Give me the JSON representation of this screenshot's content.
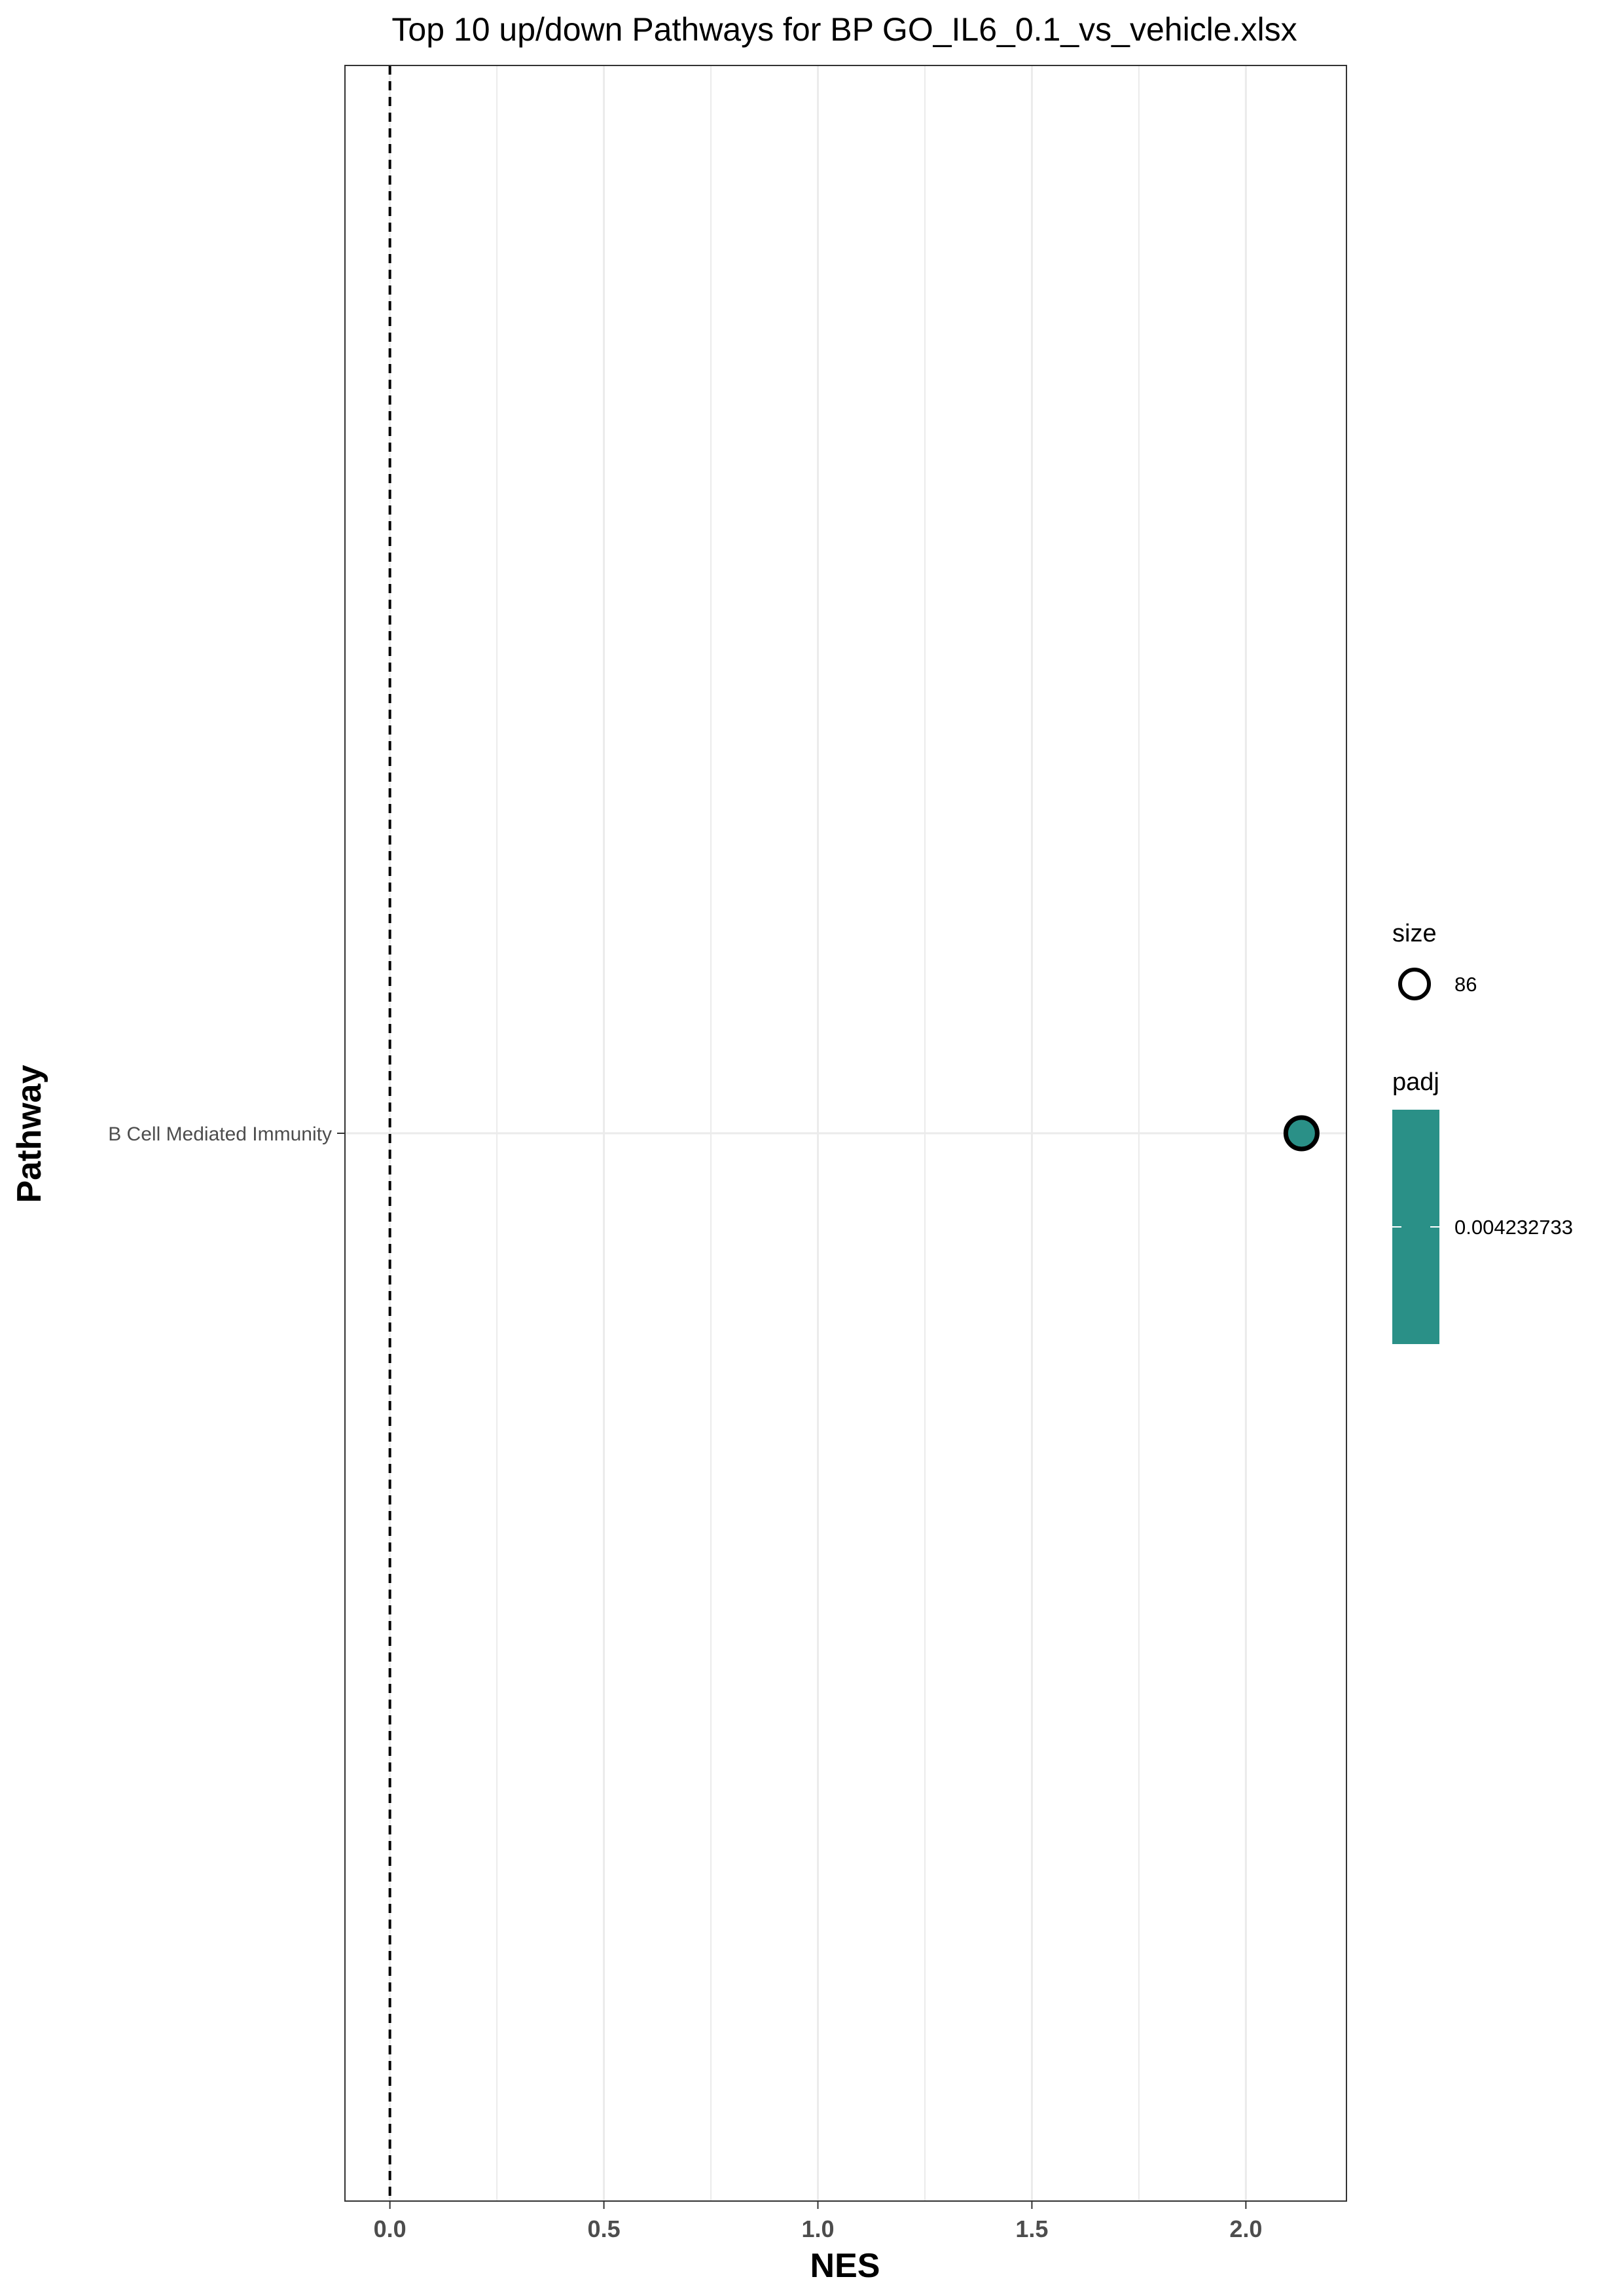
{
  "chart_data": {
    "type": "scatter",
    "title": "Top 10 up/down Pathways for BP GO_IL6_0.1_vs_vehicle.xlsx",
    "xlabel": "NES",
    "ylabel": "Pathway",
    "xlim": [
      -0.105,
      2.235
    ],
    "x_ticks": [
      0.0,
      0.5,
      1.0,
      1.5,
      2.0
    ],
    "x_tick_labels": [
      "0.0",
      "0.5",
      "1.0",
      "1.5",
      "2.0"
    ],
    "categories": [
      "B Cell Mediated Immunity"
    ],
    "reference_line": {
      "x": 0,
      "style": "dashed"
    },
    "grid": true,
    "points": [
      {
        "pathway": "B Cell Mediated Immunity",
        "NES": 2.13,
        "size": 86,
        "padj": 0.004232733
      }
    ],
    "legend": {
      "position": "right",
      "size": {
        "title": "size",
        "labels": [
          "86"
        ]
      },
      "padj": {
        "title": "padj",
        "labels": [
          "0.004232733"
        ],
        "color": "#2a9087"
      }
    },
    "colors": {
      "point_fill": "#2a9087",
      "point_stroke": "#000000",
      "grid": "#ebebeb"
    }
  }
}
